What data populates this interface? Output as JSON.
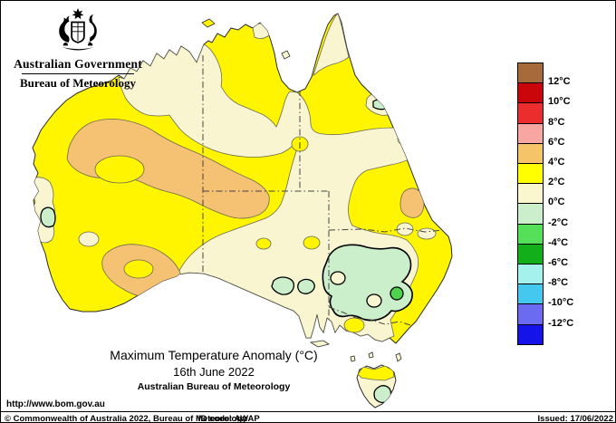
{
  "header": {
    "gov_title": "Australian Government",
    "bureau_title": "Bureau of Meteorology"
  },
  "legend": {
    "swatch_colors": [
      "#A66B38",
      "#C90609",
      "#EB2D2D",
      "#F7A6A2",
      "#F6C468",
      "#FFFF00",
      "#FAF7CE",
      "#CBEECB",
      "#56E05A",
      "#12AF1A",
      "#A5F2EC",
      "#45C8F0",
      "#6B6BF2",
      "#1414E8"
    ],
    "labels": [
      "12°C",
      "10°C",
      "8°C",
      "6°C",
      "4°C",
      "2°C",
      "0°C",
      "-2°C",
      "-4°C",
      "-6°C",
      "-8°C",
      "-10°C",
      "-12°C"
    ]
  },
  "map": {
    "title": "Maximum Temperature Anomaly (°C)",
    "date": "16th June 2022",
    "org": "Australian Bureau of Meteorology"
  },
  "footer": {
    "url": "http://www.bom.gov.au",
    "copyright": "© Commonwealth of Australia 2022, Bureau of Meteorology",
    "id_code": "ID code: AWAP",
    "issued": "Issued: 17/06/2022"
  },
  "palette": {
    "yellow": "#FFF500",
    "cream": "#F8F5D0",
    "orange": "#F5C173",
    "light_green": "#CBEECB",
    "green_spot": "#4FD34F",
    "coast": "#2a2a2a",
    "contour": "#6b6b52",
    "border_dash": "#444444",
    "ocean": "#FFFFFF"
  }
}
